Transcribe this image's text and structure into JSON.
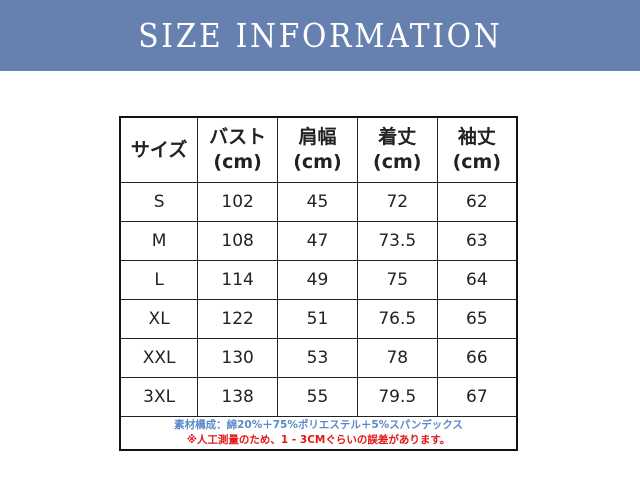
{
  "banner": {
    "title": "SIZE INFORMATION"
  },
  "table": {
    "headers": [
      {
        "l1": "サイズ",
        "l2": ""
      },
      {
        "l1": "バスト",
        "l2": "(cm)"
      },
      {
        "l1": "肩幅",
        "l2": "(cm)"
      },
      {
        "l1": "着丈",
        "l2": "(cm)"
      },
      {
        "l1": "袖丈",
        "l2": "(cm)"
      }
    ],
    "rows": [
      [
        "S",
        "102",
        "45",
        "72",
        "62"
      ],
      [
        "M",
        "108",
        "47",
        "73.5",
        "63"
      ],
      [
        "L",
        "114",
        "49",
        "75",
        "64"
      ],
      [
        "XL",
        "122",
        "51",
        "76.5",
        "65"
      ],
      [
        "XXL",
        "130",
        "53",
        "78",
        "66"
      ],
      [
        "3XL",
        "138",
        "55",
        "79.5",
        "67"
      ]
    ],
    "material": "素材構成：綿20%＋75%ポリエステル＋5%スパンデックス",
    "note": "※人工測量のため、1 - 3CMぐらいの誤差があります。"
  },
  "colors": {
    "banner": "#6680b0",
    "material": "#5a8ac8",
    "note": "#e01818"
  }
}
